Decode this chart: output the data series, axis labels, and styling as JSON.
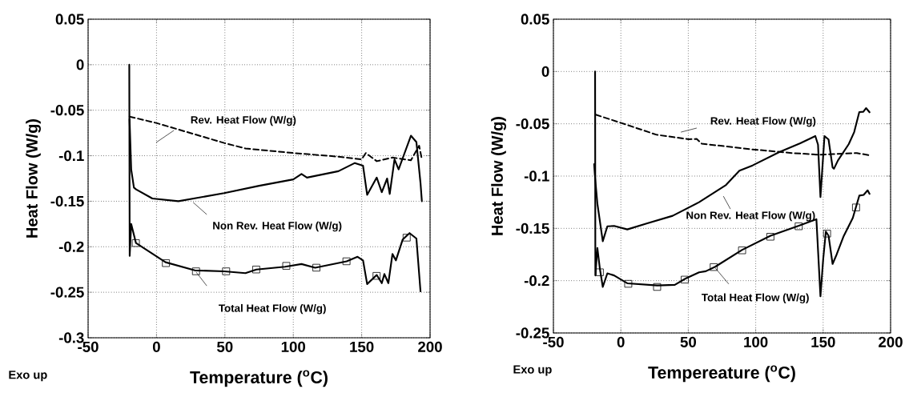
{
  "chart_data": [
    {
      "type": "line",
      "xlabel": "Temperature ($^{o}$C)",
      "ylabel": "Heat Flow (W/g)",
      "xlim": [
        -50,
        200
      ],
      "ylim": [
        -0.3,
        0.05
      ],
      "xticks": [
        -50,
        0,
        50,
        100,
        150,
        200
      ],
      "yticks": [
        -0.3,
        -0.25,
        -0.2,
        -0.15,
        -0.1,
        -0.05,
        0,
        0.05
      ],
      "grid": true,
      "series": [
        {
          "color": "#000000",
          "line_style": "dashed",
          "x": [
            -19.7,
            -0.2,
            49.5,
            65,
            100,
            133,
            150,
            153,
            161,
            172.5,
            186,
            192,
            194
          ],
          "values": [
            -0.057,
            -0.064,
            -0.086,
            -0.092,
            -0.097,
            -0.101,
            -0.104,
            -0.097,
            -0.106,
            -0.102,
            -0.105,
            -0.089,
            -0.104
          ]
        },
        {
          "color": "#000000",
          "line_style": "solid",
          "x": [
            -19.7,
            -18.5,
            -16.5,
            -14.9,
            -3,
            16,
            49.5,
            75,
            100,
            106,
            110,
            133,
            145,
            151,
            154,
            161,
            164.7,
            168.6,
            170.5,
            174,
            177,
            186,
            190,
            193,
            194
          ],
          "values": [
            -0.06,
            -0.115,
            -0.135,
            -0.137,
            -0.147,
            -0.15,
            -0.141,
            -0.133,
            -0.126,
            -0.12,
            -0.124,
            -0.117,
            -0.108,
            -0.111,
            -0.143,
            -0.124,
            -0.14,
            -0.125,
            -0.142,
            -0.104,
            -0.115,
            -0.078,
            -0.085,
            -0.13,
            -0.15
          ]
        },
        {
          "color": "#000000",
          "line_style": "solid",
          "x": [
            -19.9,
            -19.6,
            -18.5,
            -15,
            6.6,
            28,
            49.5,
            65,
            73,
            94,
            106,
            116,
            139,
            147,
            151,
            154,
            161,
            164.7,
            166.6,
            169.5,
            172.5,
            175,
            180,
            185,
            190,
            193
          ],
          "values": [
            0,
            -0.21,
            -0.175,
            -0.196,
            -0.217,
            -0.226,
            -0.227,
            -0.229,
            -0.225,
            -0.222,
            -0.219,
            -0.223,
            -0.216,
            -0.211,
            -0.215,
            -0.241,
            -0.231,
            -0.24,
            -0.23,
            -0.24,
            -0.208,
            -0.215,
            -0.192,
            -0.185,
            -0.191,
            -0.249
          ]
        },
        {
          "type": "scatter",
          "color": "#000000",
          "marker": "square",
          "x": [
            -15,
            7,
            29,
            51,
            73,
            95,
            117,
            139,
            161,
            183
          ],
          "values": [
            -0.196,
            -0.218,
            -0.227,
            -0.227,
            -0.225,
            -0.221,
            -0.223,
            -0.216,
            -0.232,
            -0.19
          ]
        }
      ],
      "annotations": [
        "Rev. Heat Flow (W/g)",
        "Non Rev. Heat Flow (W/g)",
        "Total Heat Flow (W/g)",
        "Exo up"
      ]
    },
    {
      "type": "line",
      "xlabel": "Tempereature ($^{o}$C)",
      "ylabel": "Heat Flow (W/g)",
      "xlim": [
        -50,
        200
      ],
      "ylim": [
        -0.25,
        0.05
      ],
      "xticks": [
        -50,
        0,
        50,
        100,
        150,
        200
      ],
      "yticks": [
        -0.25,
        -0.2,
        -0.15,
        -0.1,
        -0.05,
        0,
        0.05
      ],
      "grid": true,
      "series": [
        {
          "color": "#000000",
          "line_style": "dashed",
          "x": [
            -18.6,
            -0.2,
            26.5,
            50.3,
            56.2,
            60,
            97.7,
            127.4,
            147,
            157,
            175,
            183.8
          ],
          "values": [
            -0.0413,
            -0.049,
            -0.0605,
            -0.0648,
            -0.0645,
            -0.069,
            -0.0745,
            -0.078,
            -0.0796,
            -0.079,
            -0.078,
            -0.08
          ]
        },
        {
          "color": "#000000",
          "line_style": "solid",
          "x": [
            -19.8,
            -19.2,
            -17.4,
            -13.4,
            -10,
            -5,
            4.8,
            18.6,
            38.4,
            58,
            78,
            87.9,
            97.7,
            117.5,
            133,
            144.2,
            146.2,
            148,
            151,
            154,
            157,
            158,
            161,
            169,
            173,
            176.8,
            179.8,
            181.8,
            184.4
          ],
          "values": [
            -0.0885,
            -0.1,
            -0.1264,
            -0.1623,
            -0.148,
            -0.1477,
            -0.151,
            -0.1456,
            -0.138,
            -0.125,
            -0.1085,
            -0.0949,
            -0.0898,
            -0.077,
            -0.0686,
            -0.0617,
            -0.07,
            -0.12,
            -0.0617,
            -0.065,
            -0.0917,
            -0.093,
            -0.085,
            -0.0694,
            -0.058,
            -0.0388,
            -0.0385,
            -0.035,
            -0.039
          ]
        },
        {
          "color": "#000000",
          "line_style": "solid",
          "x": [
            -19.1,
            -18.9,
            -17.4,
            -15.5,
            -13.4,
            -10,
            -5,
            5,
            27,
            40,
            48,
            58,
            63,
            70,
            90,
            111,
            132,
            145,
            148,
            150,
            152,
            154,
            157,
            160,
            165,
            172,
            176.8,
            180,
            183,
            184.4
          ],
          "values": [
            0,
            -0.195,
            -0.1687,
            -0.189,
            -0.206,
            -0.193,
            -0.195,
            -0.2026,
            -0.2046,
            -0.204,
            -0.198,
            -0.192,
            -0.191,
            -0.1867,
            -0.1705,
            -0.157,
            -0.1474,
            -0.1413,
            -0.215,
            -0.18,
            -0.153,
            -0.157,
            -0.184,
            -0.175,
            -0.158,
            -0.14,
            -0.1187,
            -0.118,
            -0.1136,
            -0.117
          ]
        },
        {
          "type": "scatter",
          "color": "#000000",
          "marker": "square",
          "x": [
            -15.5,
            5.6,
            27,
            47.5,
            69,
            90,
            111,
            132,
            153,
            174.5
          ],
          "values": [
            -0.192,
            -0.203,
            -0.206,
            -0.199,
            -0.187,
            -0.171,
            -0.158,
            -0.148,
            -0.155,
            -0.13
          ]
        }
      ],
      "annotations": [
        "Rev. Heat Flow (W/g)",
        "Non Rev. Heat Flow (W/g)",
        "Total Heat Flow (W/g)",
        "Exo up"
      ]
    }
  ]
}
